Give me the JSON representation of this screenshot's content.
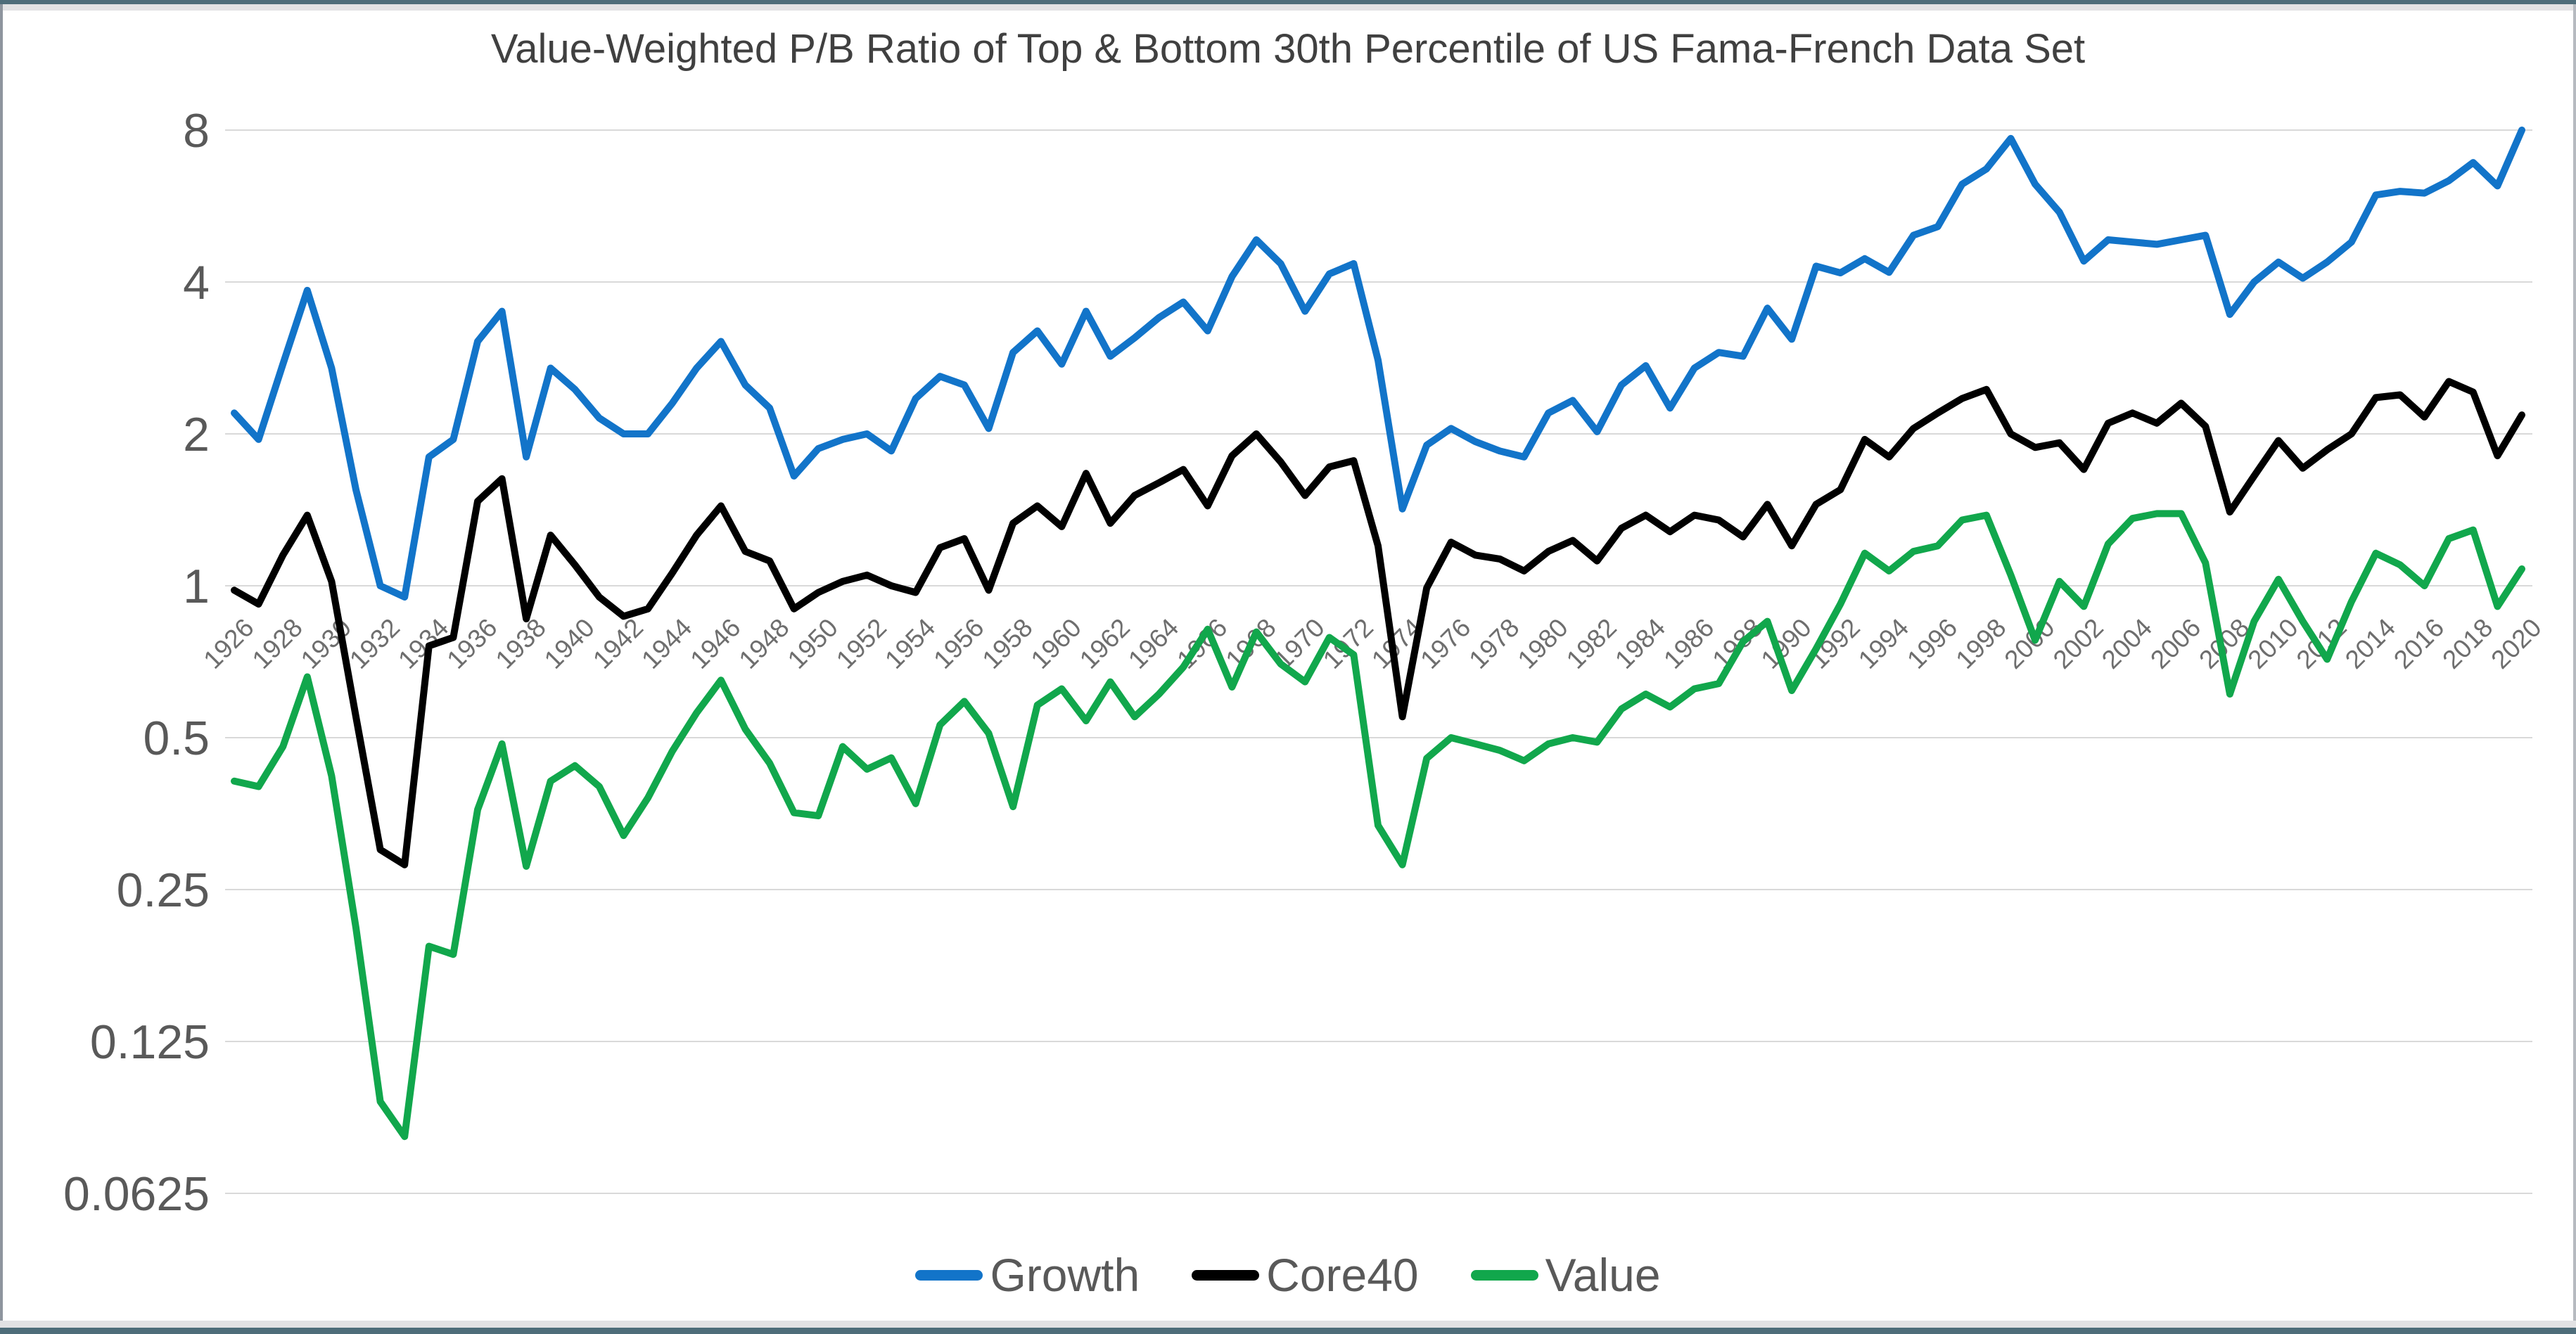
{
  "window": {
    "frame_bar_color": "#4E6D7A",
    "frame_strip_color": "#E2E2E4",
    "frame_side_left_color": "#8E959E",
    "frame_side_right_color": "#B6BAC0"
  },
  "text_colors": {
    "title": "#404040",
    "axis_labels": "#595959",
    "x_axis_labels": "#6E6E6E",
    "legend": "#595959"
  },
  "chart_data": {
    "type": "line",
    "title": "Value-Weighted P/B Ratio of Top & Bottom 30th Percentile of US Fama-French Data Set",
    "xlabel": "",
    "ylabel": "",
    "y_scale": "log2",
    "ylim": [
      0.0625,
      8
    ],
    "grid": "horizontal",
    "gridline_color": "#D9D9D9",
    "legend_position": "bottom",
    "y_ticks": [
      8,
      4,
      2,
      1,
      0.5,
      0.25,
      0.125,
      0.0625
    ],
    "y_tick_labels": [
      "8",
      "4",
      "2",
      "1",
      "0.5",
      "0.25",
      "0.125",
      "0.0625"
    ],
    "x_axis_crosses_at": 1,
    "x": [
      1926,
      1927,
      1928,
      1929,
      1930,
      1931,
      1932,
      1933,
      1934,
      1935,
      1936,
      1937,
      1938,
      1939,
      1940,
      1941,
      1942,
      1943,
      1944,
      1945,
      1946,
      1947,
      1948,
      1949,
      1950,
      1951,
      1952,
      1953,
      1954,
      1955,
      1956,
      1957,
      1958,
      1959,
      1960,
      1961,
      1962,
      1963,
      1964,
      1965,
      1966,
      1967,
      1968,
      1969,
      1970,
      1971,
      1972,
      1973,
      1974,
      1975,
      1976,
      1977,
      1978,
      1979,
      1980,
      1981,
      1982,
      1983,
      1984,
      1985,
      1986,
      1987,
      1988,
      1989,
      1990,
      1991,
      1992,
      1993,
      1994,
      1995,
      1996,
      1997,
      1998,
      1999,
      2000,
      2001,
      2002,
      2003,
      2004,
      2005,
      2006,
      2007,
      2008,
      2009,
      2010,
      2011,
      2012,
      2013,
      2014,
      2015,
      2016,
      2017,
      2018,
      2019,
      2020
    ],
    "x_tick_labels": [
      "1926",
      "1928",
      "1930",
      "1932",
      "1934",
      "1936",
      "1938",
      "1940",
      "1942",
      "1944",
      "1946",
      "1948",
      "1950",
      "1952",
      "1954",
      "1956",
      "1958",
      "1960",
      "1962",
      "1964",
      "1966",
      "1968",
      "1970",
      "1972",
      "1974",
      "1976",
      "1978",
      "1980",
      "1982",
      "1984",
      "1986",
      "1988",
      "1990",
      "1992",
      "1994",
      "1996",
      "1998",
      "2000",
      "2002",
      "2004",
      "2006",
      "2008",
      "2010",
      "2012",
      "2014",
      "2016",
      "2018",
      "2020"
    ],
    "series": [
      {
        "name": "Growth",
        "color": "#1274C9",
        "values": [
          2.2,
          1.95,
          2.75,
          3.85,
          2.7,
          1.55,
          1.0,
          0.95,
          1.8,
          1.95,
          3.05,
          3.5,
          1.8,
          2.7,
          2.45,
          2.15,
          2.0,
          2.0,
          2.3,
          2.7,
          3.05,
          2.5,
          2.25,
          1.65,
          1.87,
          1.95,
          2.0,
          1.85,
          2.35,
          2.6,
          2.5,
          2.05,
          2.9,
          3.2,
          2.75,
          3.5,
          2.85,
          3.1,
          3.4,
          3.65,
          3.2,
          4.1,
          4.85,
          4.35,
          3.5,
          4.15,
          4.35,
          2.8,
          1.42,
          1.9,
          2.05,
          1.93,
          1.85,
          1.8,
          2.2,
          2.33,
          2.02,
          2.5,
          2.73,
          2.25,
          2.7,
          2.9,
          2.85,
          3.55,
          3.08,
          4.3,
          4.17,
          4.45,
          4.18,
          4.95,
          5.15,
          6.25,
          6.7,
          7.7,
          6.25,
          5.5,
          4.4,
          4.85,
          4.8,
          4.75,
          4.85,
          4.95,
          3.45,
          4.0,
          4.38,
          4.07,
          4.38,
          4.8,
          5.95,
          6.05,
          6.0,
          6.35,
          6.9,
          6.2,
          8.0
        ]
      },
      {
        "name": "Core40",
        "color": "#000000",
        "values": [
          0.98,
          0.92,
          1.15,
          1.38,
          1.02,
          0.55,
          0.3,
          0.28,
          0.76,
          0.79,
          1.47,
          1.63,
          0.86,
          1.26,
          1.1,
          0.95,
          0.87,
          0.9,
          1.06,
          1.26,
          1.44,
          1.17,
          1.12,
          0.9,
          0.97,
          1.02,
          1.05,
          1.0,
          0.97,
          1.19,
          1.24,
          0.98,
          1.33,
          1.44,
          1.31,
          1.67,
          1.33,
          1.51,
          1.6,
          1.7,
          1.44,
          1.81,
          2.0,
          1.76,
          1.51,
          1.72,
          1.77,
          1.2,
          0.55,
          0.99,
          1.22,
          1.15,
          1.13,
          1.07,
          1.17,
          1.23,
          1.12,
          1.3,
          1.38,
          1.28,
          1.38,
          1.35,
          1.25,
          1.45,
          1.2,
          1.45,
          1.55,
          1.95,
          1.8,
          2.05,
          2.2,
          2.35,
          2.45,
          2.0,
          1.88,
          1.92,
          1.7,
          2.1,
          2.2,
          2.1,
          2.3,
          2.07,
          1.4,
          1.65,
          1.94,
          1.71,
          1.86,
          2.0,
          2.36,
          2.39,
          2.16,
          2.54,
          2.42,
          1.81,
          2.18
        ]
      },
      {
        "name": "Value",
        "color": "#11A74C",
        "values": [
          0.41,
          0.4,
          0.48,
          0.66,
          0.42,
          0.21,
          0.095,
          0.081,
          0.193,
          0.186,
          0.36,
          0.486,
          0.278,
          0.41,
          0.44,
          0.4,
          0.32,
          0.38,
          0.47,
          0.56,
          0.65,
          0.52,
          0.445,
          0.355,
          0.35,
          0.48,
          0.433,
          0.456,
          0.37,
          0.53,
          0.59,
          0.51,
          0.365,
          0.58,
          0.625,
          0.54,
          0.645,
          0.55,
          0.61,
          0.69,
          0.82,
          0.63,
          0.81,
          0.7,
          0.645,
          0.79,
          0.73,
          0.335,
          0.28,
          0.455,
          0.5,
          0.486,
          0.472,
          0.45,
          0.486,
          0.5,
          0.49,
          0.57,
          0.61,
          0.575,
          0.625,
          0.64,
          0.775,
          0.85,
          0.62,
          0.75,
          0.92,
          1.16,
          1.07,
          1.17,
          1.2,
          1.35,
          1.38,
          1.05,
          0.78,
          1.02,
          0.91,
          1.21,
          1.36,
          1.39,
          1.39,
          1.11,
          0.61,
          0.85,
          1.03,
          0.85,
          0.715,
          0.93,
          1.16,
          1.1,
          1.0,
          1.24,
          1.29,
          0.91,
          1.08
        ]
      }
    ]
  }
}
